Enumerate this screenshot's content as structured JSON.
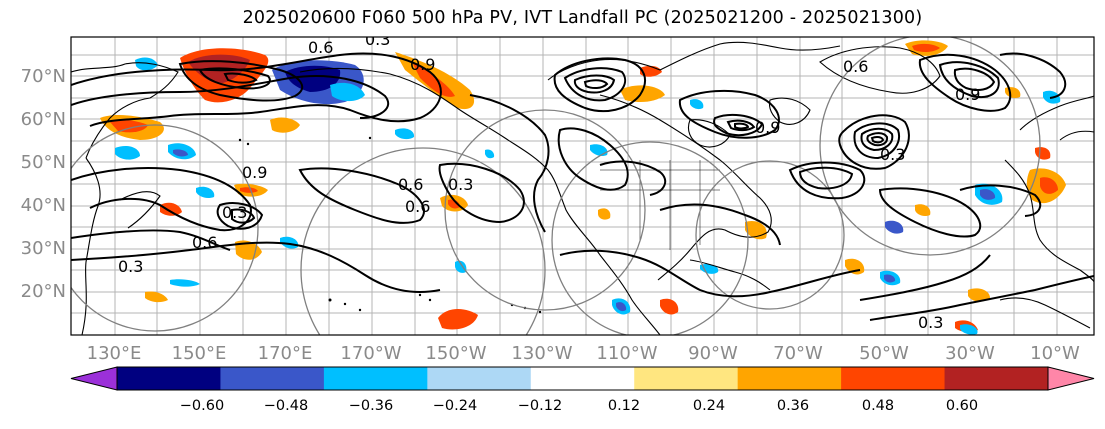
{
  "title": "2025020600 F060 500 hPa PV, IVT Landfall PC (2025021200 - 2025021300)",
  "lat_labels": [
    "70°N",
    "60°N",
    "50°N",
    "40°N",
    "30°N",
    "20°N"
  ],
  "lon_labels": [
    "130°E",
    "150°E",
    "170°E",
    "170°W",
    "150°W",
    "130°W",
    "110°W",
    "90°W",
    "70°W",
    "50°W",
    "30°W",
    "10°W"
  ],
  "contour_labels": [
    "0.6",
    "0.3",
    "0.9",
    "0.6",
    "0.3",
    "0.9",
    "0.6",
    "0.3",
    "0.6",
    "0.9",
    "0.3",
    "0.9",
    "0.3",
    "0.6",
    "0.3"
  ],
  "colorbar": {
    "ticks": [
      "−0.60",
      "−0.48",
      "−0.36",
      "−0.24",
      "−0.12",
      "0.12",
      "0.24",
      "0.36",
      "0.48",
      "0.60"
    ],
    "colors": [
      "#9b30d9",
      "#000080",
      "#3a57c9",
      "#00bfff",
      "#add8f5",
      "#ffffff",
      "#ffe680",
      "#ffa500",
      "#ff4500",
      "#b22222",
      "#ff86a8"
    ]
  },
  "shading": {
    "negative_colors": [
      "#000080",
      "#3a57c9",
      "#00bfff",
      "#add8f5"
    ],
    "positive_colors": [
      "#ffa500",
      "#ff4500",
      "#b22222"
    ]
  },
  "line_colors": {
    "contour": "#000000",
    "circle": "#808080",
    "grid": "#b4b4b4",
    "coast": "#000000"
  }
}
